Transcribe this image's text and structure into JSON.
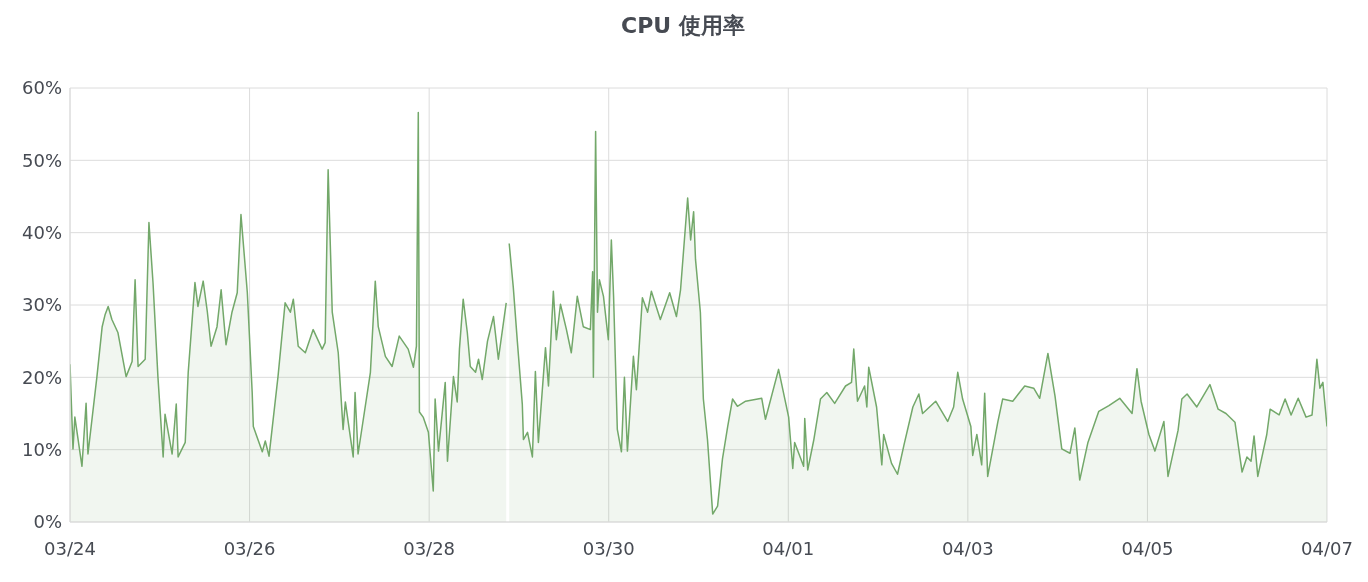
{
  "chart_data": {
    "type": "area",
    "title": "CPU 使用率",
    "x": [
      "--03-24T00:00",
      "--03-24T00:48",
      "--03-24T01:18",
      "--03-24T03:12",
      "--03-24T04:18",
      "--03-24T04:48",
      "--03-24T07:12",
      "--03-24T08:36",
      "--03-24T09:24",
      "--03-24T10:12",
      "--03-24T11:12",
      "--03-24T12:48",
      "--03-24T15:00",
      "--03-24T16:36",
      "--03-24T17:24",
      "--03-24T18:12",
      "--03-24T20:06",
      "--03-24T21:06",
      "--03-24T22:12",
      "--03-24T23:30",
      "--03-25T00:54",
      "--03-25T01:24",
      "--03-25T03:18",
      "--03-25T04:24",
      "--03-25T04:54",
      "--03-25T06:48",
      "--03-25T07:36",
      "--03-25T09:24",
      "--03-25T10:12",
      "--03-25T11:36",
      "--03-25T12:42",
      "--03-25T13:42",
      "--03-25T15:18",
      "--03-25T16:24",
      "--03-25T17:42",
      "--03-25T19:18",
      "--03-25T20:42",
      "--03-25T21:42",
      "--03-25T23:24",
      "--03-26T00:42",
      "--03-26T01:00",
      "--03-26T03:24",
      "--03-26T04:12",
      "--03-26T05:12",
      "--03-26T07:36",
      "--03-26T09:30",
      "--03-26T10:54",
      "--03-26T11:42",
      "--03-26T13:00",
      "--03-26T14:54",
      "--03-26T17:00",
      "--03-26T19:24",
      "--03-26T20:12",
      "--03-26T21:00",
      "--03-26T22:06",
      "--03-26T23:42",
      "--03-27T01:00",
      "--03-27T01:36",
      "--03-27T03:42",
      "--03-27T04:12",
      "--03-27T05:00",
      "--03-27T08:18",
      "--03-27T09:36",
      "--03-27T10:24",
      "--03-27T12:18",
      "--03-27T14:06",
      "--03-27T16:00",
      "--03-27T18:24",
      "--03-27T19:48",
      "--03-27T20:36",
      "--03-27T21:06",
      "--03-27T21:24",
      "--03-27T22:24",
      "--03-27T23:48",
      "--03-28T01:06",
      "--03-28T01:36",
      "--03-28T02:30",
      "--03-28T04:18",
      "--03-28T04:54",
      "--03-28T06:30",
      "--03-28T07:30",
      "--03-28T08:06",
      "--03-28T09:06",
      "--03-28T10:12",
      "--03-28T11:00",
      "--03-28T12:24",
      "--03-28T13:12",
      "--03-28T14:12",
      "--03-28T15:36",
      "--03-28T17:12",
      "--03-28T18:30",
      "--03-28T20:36",
      "--03-28T21:00",
      "--03-28T21:24",
      "--03-28T22:30",
      "--03-28T23:36",
      "--03-29T00:54",
      "--03-29T01:12",
      "--03-29T02:18",
      "--03-29T03:36",
      "--03-29T04:24",
      "--03-29T05:12",
      "--03-29T07:06",
      "--03-29T07:54",
      "--03-29T09:12",
      "--03-29T10:00",
      "--03-29T11:06",
      "--03-29T12:42",
      "--03-29T14:00",
      "--03-29T15:36",
      "--03-29T17:12",
      "--03-29T19:06",
      "--03-29T19:42",
      "--03-29T19:54",
      "--03-29T20:30",
      "--03-29T21:00",
      "--03-29T21:30",
      "--03-29T22:36",
      "--03-29T23:54",
      "--03-30T00:42",
      "--03-30T01:18",
      "--03-30T02:18",
      "--03-30T03:24",
      "--03-30T04:12",
      "--03-30T05:00",
      "--03-30T06:36",
      "--03-30T07:24",
      "--03-30T09:00",
      "--03-30T10:24",
      "--03-30T11:24",
      "--03-30T13:48",
      "--03-30T16:18",
      "--03-30T18:06",
      "--03-30T19:12",
      "--03-30T21:06",
      "--03-30T21:54",
      "--03-30T22:42",
      "--03-30T23:12",
      "--03-31T00:30",
      "--03-31T01:18",
      "--03-31T02:24",
      "--03-31T03:48",
      "--03-31T05:06",
      "--03-31T06:24",
      "--03-31T07:48",
      "--03-31T09:06",
      "--03-31T10:24",
      "--03-31T12:36",
      "--03-31T16:54",
      "--03-31T17:54",
      "--03-31T21:24",
      "--04-01T00:06",
      "--04-01T01:12",
      "--04-01T01:42",
      "--04-01T04:06",
      "--04-01T04:24",
      "--04-01T05:12",
      "--04-01T06:48",
      "--04-01T08:36",
      "--04-01T10:18",
      "--04-01T12:24",
      "--04-01T15:18",
      "--04-01T16:54",
      "--04-01T17:30",
      "--04-01T18:30",
      "--04-01T20:24",
      "--04-01T21:00",
      "--04-01T21:30",
      "--04-01T23:36",
      "--04-02T01:00",
      "--04-02T01:30",
      "--04-02T03:36",
      "--04-02T05:12",
      "--04-02T06:54",
      "--04-02T09:18",
      "--04-02T10:54",
      "--04-02T11:54",
      "--04-02T15:24",
      "--04-02T18:36",
      "--04-02T20:12",
      "--04-02T21:18",
      "--04-02T22:36",
      "--04-03T00:48",
      "--04-03T01:18",
      "--04-03T02:24",
      "--04-03T03:42",
      "--04-03T04:30",
      "--04-03T05:18",
      "--04-03T08:00",
      "--04-03T09:18",
      "--04-03T12:00",
      "--04-03T15:12",
      "--04-03T17:36",
      "--04-03T19:12",
      "--04-03T21:24",
      "--04-03T23:18",
      "--04-04T01:06",
      "--04-04T03:18",
      "--04-04T04:36",
      "--04-04T05:54",
      "--04-04T08:06",
      "--04-04T11:00",
      "--04-04T13:42",
      "--04-04T16:36",
      "--04-04T19:54",
      "--04-04T21:12",
      "--04-04T22:18",
      "--04-05T00:24",
      "--04-05T02:00",
      "--04-05T04:24",
      "--04-05T05:30",
      "--04-05T08:12",
      "--04-05T09:12",
      "--04-05T10:36",
      "--04-05T13:12",
      "--04-05T16:42",
      "--04-05T18:54",
      "--04-05T21:00",
      "--04-05T23:24",
      "--04-06T01:18",
      "--04-06T02:36",
      "--04-06T03:42",
      "--04-06T04:30",
      "--04-06T05:30",
      "--04-06T07:54",
      "--04-06T08:48",
      "--04-06T11:12",
      "--04-06T12:48",
      "--04-06T14:24",
      "--04-06T16:18",
      "--04-06T18:24",
      "--04-06T20:00",
      "--04-06T21:18",
      "--04-06T22:06",
      "--04-06T22:54",
      "--04-07T00:00"
    ],
    "series": [
      {
        "color": "#73a86a",
        "values": [
          21.8,
          10.1,
          14.5,
          7.7,
          16.4,
          9.4,
          20.1,
          27.0,
          28.7,
          29.8,
          28.0,
          26.2,
          20.1,
          22.2,
          33.5,
          21.5,
          22.5,
          41.4,
          33.0,
          20.1,
          9.0,
          14.9,
          9.4,
          16.3,
          9.0,
          11.0,
          20.7,
          33.1,
          29.8,
          33.3,
          29.1,
          24.3,
          27.0,
          32.1,
          24.5,
          29.0,
          31.7,
          42.5,
          31.7,
          17.9,
          13.2,
          9.7,
          11.2,
          9.1,
          20.1,
          30.3,
          29.0,
          30.8,
          24.3,
          23.4,
          26.6,
          23.9,
          24.8,
          48.7,
          29.0,
          23.4,
          12.8,
          16.6,
          9.0,
          17.9,
          9.4,
          20.7,
          33.3,
          27.0,
          22.9,
          21.5,
          25.7,
          23.9,
          21.4,
          24.3,
          56.6,
          15.2,
          14.5,
          12.4,
          4.3,
          17.0,
          9.8,
          19.3,
          8.4,
          20.1,
          16.6,
          23.9,
          30.8,
          26.2,
          21.5,
          20.7,
          22.5,
          19.7,
          25.0,
          28.4,
          22.5,
          30.3,
          null,
          38.5,
          32.4,
          24.8,
          16.3,
          11.4,
          12.4,
          9.0,
          20.8,
          11.0,
          24.1,
          18.8,
          31.9,
          25.2,
          30.1,
          26.6,
          23.4,
          31.2,
          27.0,
          26.6,
          34.6,
          20.0,
          54.0,
          29.0,
          33.5,
          31.2,
          25.2,
          39.0,
          31.2,
          12.8,
          9.7,
          20.0,
          9.8,
          22.9,
          18.3,
          31.0,
          29.0,
          31.9,
          28.0,
          31.7,
          28.4,
          32.1,
          44.8,
          39.0,
          42.9,
          36.3,
          29.0,
          17.0,
          11.4,
          1.1,
          2.2,
          8.7,
          13.2,
          17.0,
          16.0,
          16.7,
          17.1,
          14.2,
          21.1,
          14.5,
          7.4,
          11.0,
          7.7,
          14.3,
          7.2,
          11.3,
          17.0,
          17.9,
          16.4,
          18.8,
          19.3,
          23.9,
          16.7,
          18.8,
          15.9,
          21.4,
          15.9,
          7.9,
          12.1,
          8.1,
          6.6,
          10.6,
          15.9,
          17.7,
          15.0,
          16.7,
          13.9,
          15.9,
          20.7,
          17.0,
          13.2,
          9.2,
          12.1,
          7.9,
          17.8,
          6.3,
          13.8,
          17.0,
          16.7,
          18.8,
          18.5,
          17.1,
          23.3,
          17.4,
          10.1,
          9.5,
          13.0,
          5.8,
          11.0,
          15.3,
          16.1,
          17.1,
          15.0,
          21.2,
          16.7,
          12.1,
          9.8,
          13.9,
          6.3,
          12.7,
          17.0,
          17.7,
          15.9,
          19.0,
          15.6,
          15.0,
          13.8,
          6.9,
          9.0,
          8.4,
          11.9,
          6.3,
          12.1,
          15.6,
          14.8,
          17.0,
          14.8,
          17.1,
          14.5,
          14.8,
          22.5,
          18.5,
          19.3,
          13.2
        ]
      }
    ],
    "xlim": [
      "--03-24",
      "--04-07"
    ],
    "xticks": [
      {
        "value": "--03-24",
        "label": "03/24"
      },
      {
        "value": "--03-26",
        "label": "03/26"
      },
      {
        "value": "--03-28",
        "label": "03/28"
      },
      {
        "value": "--03-30",
        "label": "03/30"
      },
      {
        "value": "--04-01",
        "label": "04/01"
      },
      {
        "value": "--04-03",
        "label": "04/03"
      },
      {
        "value": "--04-05",
        "label": "04/05"
      },
      {
        "value": "--04-07",
        "label": "04/07"
      }
    ],
    "ylim": [
      0,
      60
    ],
    "yticks": [
      {
        "value": 0,
        "label": "0%"
      },
      {
        "value": 10,
        "label": "10%"
      },
      {
        "value": 20,
        "label": "20%"
      },
      {
        "value": 30,
        "label": "30%"
      },
      {
        "value": 40,
        "label": "40%"
      },
      {
        "value": 50,
        "label": "50%"
      },
      {
        "value": 60,
        "label": "60%"
      }
    ],
    "grid": true,
    "legend": false,
    "marker": "none",
    "line_style": "solid"
  }
}
